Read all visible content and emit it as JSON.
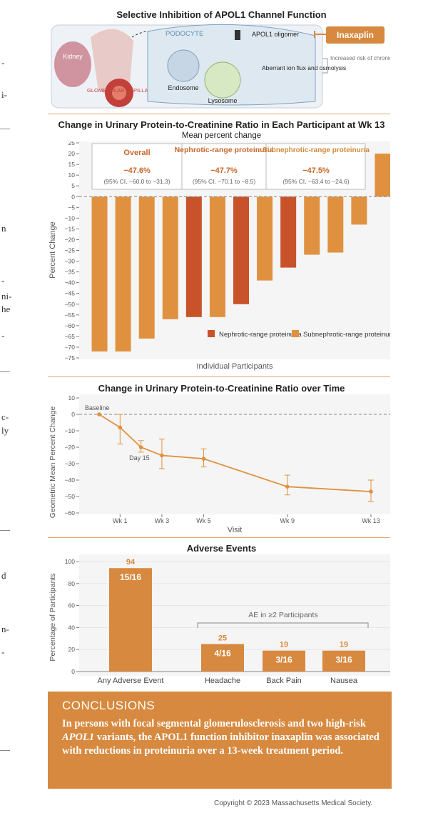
{
  "figure_title": "Selective Inhibition of APOL1 Channel Function",
  "side_fragments": [
    "-",
    "i-",
    "n",
    "-",
    "ni-",
    "he",
    "-",
    "c-",
    "ly",
    "d",
    "n-",
    "-"
  ],
  "illustration": {
    "kidney_label": "Kidney",
    "glomerular_label": "GLOMERULAR CAPILLARY",
    "podocyte_label": "PODOCYTE",
    "oligomer_label": "APOL1 oligomer",
    "drug_label": "Inaxaplin",
    "endosome_label": "Endosome",
    "lysosome_label": "Lysosome",
    "aberrant_label": "Aberrant ion flux and osmolysis",
    "risk_label": "Increased risk of chronic kidney disease"
  },
  "chart_data": [
    {
      "type": "bar",
      "title": "Change in Urinary Protein-to-Creatinine Ratio in Each Participant at Wk 13",
      "subtitle": "Mean percent change",
      "xlabel": "Individual Participants",
      "ylabel": "Percent Change",
      "ylim": [
        -75,
        25
      ],
      "yticks": [
        25,
        20,
        15,
        10,
        5,
        0,
        -5,
        -10,
        -15,
        -20,
        -25,
        -30,
        -35,
        -40,
        -45,
        -50,
        -55,
        -60,
        -65,
        -70,
        -75
      ],
      "values": [
        -72,
        -72,
        -66,
        -57,
        -56,
        -56,
        -50,
        -39,
        -33,
        -27,
        -26,
        -13,
        20
      ],
      "groups": [
        "Subnephrotic-range proteinuria",
        "Subnephrotic-range proteinuria",
        "Subnephrotic-range proteinuria",
        "Subnephrotic-range proteinuria",
        "Nephrotic-range proteinuria",
        "Subnephrotic-range proteinuria",
        "Nephrotic-range proteinuria",
        "Subnephrotic-range proteinuria",
        "Nephrotic-range proteinuria",
        "Subnephrotic-range proteinuria",
        "Subnephrotic-range proteinuria",
        "Subnephrotic-range proteinuria",
        "Subnephrotic-range proteinuria"
      ],
      "legend": [
        {
          "name": "Nephrotic-range proteinuria",
          "color": "#c8532a"
        },
        {
          "name": "Subnephrotic-range proteinuria",
          "color": "#e0913f"
        }
      ],
      "summary": [
        {
          "label": "Overall",
          "value": "−47.6%",
          "ci": "(95% CI, −60.0 to −31.3)"
        },
        {
          "label": "Nephrotic-range proteinuria",
          "value": "−47.7%",
          "ci": "(95% CI, −70.1 to −8.5)"
        },
        {
          "label": "Subnephrotic-range proteinuria",
          "value": "−47.5%",
          "ci": "(95% CI, −63.4 to −24.6)"
        }
      ]
    },
    {
      "type": "line",
      "title": "Change in Urinary Protein-to-Creatinine Ratio over Time",
      "xlabel": "Visit",
      "ylabel": "Geometric Mean Percent Change",
      "ylim": [
        -60,
        10
      ],
      "yticks": [
        10,
        0,
        -10,
        -20,
        -30,
        -40,
        -50,
        -60
      ],
      "x_tick_labels": [
        "Wk 1",
        "Wk 3",
        "Wk 5",
        "Wk 9",
        "Wk 13"
      ],
      "x_tick_days": [
        7,
        21,
        35,
        63,
        91
      ],
      "points": [
        {
          "day": 0,
          "value": 0,
          "lower": 0,
          "upper": 0
        },
        {
          "day": 7,
          "value": -8,
          "lower": -18,
          "upper": 0
        },
        {
          "day": 14,
          "value": -20,
          "lower": -23,
          "upper": -16
        },
        {
          "day": 21,
          "value": -25,
          "lower": -33,
          "upper": -15
        },
        {
          "day": 35,
          "value": -27,
          "lower": -32,
          "upper": -21
        },
        {
          "day": 63,
          "value": -44,
          "lower": -49,
          "upper": -37
        },
        {
          "day": 91,
          "value": -47,
          "lower": -53,
          "upper": -40
        }
      ],
      "annotations": [
        "Baseline",
        "Day 15"
      ]
    },
    {
      "type": "bar",
      "title": "Adverse Events",
      "ylabel": "Percentage of Participants",
      "ylim": [
        0,
        100
      ],
      "yticks": [
        100,
        80,
        60,
        40,
        20,
        0
      ],
      "categories": [
        "Any Adverse Event",
        "Headache",
        "Back Pain",
        "Nausea"
      ],
      "values": [
        94,
        25,
        19,
        19
      ],
      "value_labels": [
        "94",
        "25",
        "19",
        "19"
      ],
      "fraction_labels": [
        "15/16",
        "4/16",
        "3/16",
        "3/16"
      ],
      "bracket_label": "AE in ≥2 Participants"
    }
  ],
  "conclusions": {
    "title": "CONCLUSIONS",
    "text_before": "In persons with focal segmental glomerulosclerosis and two high-risk ",
    "text_italic": "APOL1",
    "text_after": " variants, the APOL1 function inhibitor inaxaplin was associated with reductions in proteinuria over a 13-week treatment period."
  },
  "copyright": "Copyright © 2023 Massachusetts Medical Society."
}
